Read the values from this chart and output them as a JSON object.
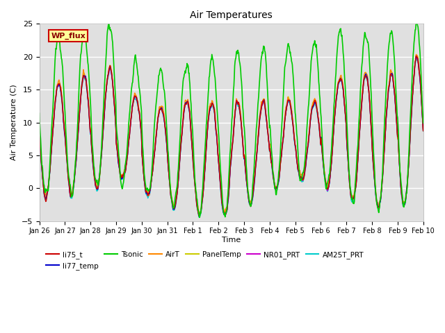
{
  "title": "Air Temperatures",
  "xlabel": "Time",
  "ylabel": "Air Temperature (C)",
  "ylim": [
    -5,
    25
  ],
  "yticks": [
    -5,
    0,
    5,
    10,
    15,
    20,
    25
  ],
  "x_tick_labels": [
    "Jan 26",
    "Jan 27",
    "Jan 28",
    "Jan 29",
    "Jan 30",
    "Jan 31",
    "Feb 1",
    "Feb 2",
    "Feb 3",
    "Feb 4",
    "Feb 5",
    "Feb 6",
    "Feb 7",
    "Feb 8",
    "Feb 9",
    "Feb 10"
  ],
  "series_colors": {
    "li75_t": "#cc0000",
    "li77_temp": "#0000cc",
    "Tsonic": "#00cc00",
    "AirT": "#ff8800",
    "PanelTemp": "#cccc00",
    "NR01_PRT": "#cc00cc",
    "AM25T_PRT": "#00cccc"
  },
  "annotation_text": "WP_flux",
  "annotation_bg": "#ffff99",
  "annotation_border": "#cc0000",
  "background_color": "#e0e0e0",
  "n_points": 960,
  "seed": 42
}
